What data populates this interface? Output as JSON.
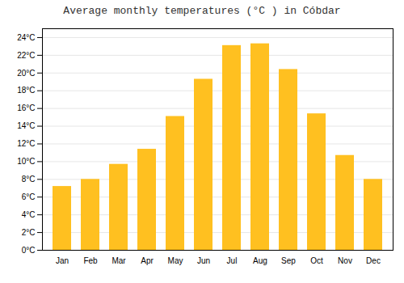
{
  "chart_data": {
    "type": "bar",
    "title": "Average monthly temperatures (°C ) in Cóbdar",
    "categories": [
      "Jan",
      "Feb",
      "Mar",
      "Apr",
      "May",
      "Jun",
      "Jul",
      "Aug",
      "Sep",
      "Oct",
      "Nov",
      "Dec"
    ],
    "values": [
      7.2,
      8.0,
      9.7,
      11.4,
      15.1,
      19.3,
      23.1,
      23.3,
      20.4,
      15.4,
      10.7,
      8.0
    ],
    "color": "#FFC020",
    "ylim": [
      0,
      25
    ],
    "yticks": [
      {
        "value": 0,
        "label": "0°C"
      },
      {
        "value": 2,
        "label": "2°C"
      },
      {
        "value": 4,
        "label": "4°C"
      },
      {
        "value": 6,
        "label": "6°C"
      },
      {
        "value": 8,
        "label": "8°C"
      },
      {
        "value": 10,
        "label": "10°C"
      },
      {
        "value": 12,
        "label": "12°C"
      },
      {
        "value": 14,
        "label": "14°C"
      },
      {
        "value": 16,
        "label": "16°C"
      },
      {
        "value": 18,
        "label": "18°C"
      },
      {
        "value": 20,
        "label": "20°C"
      },
      {
        "value": 22,
        "label": "22°C"
      },
      {
        "value": 24,
        "label": "24°C"
      }
    ],
    "grid": true
  }
}
